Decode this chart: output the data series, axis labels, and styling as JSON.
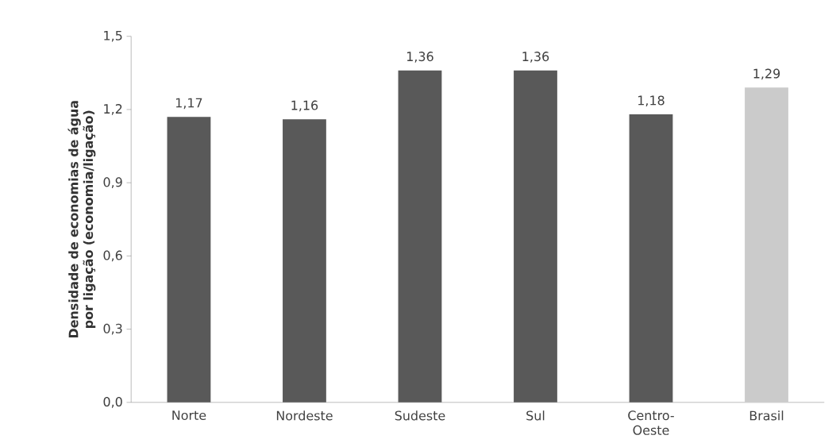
{
  "chart_data": {
    "type": "bar",
    "ylabel": "Densidade de economias de água por ligação (economia/ligação)",
    "categories": [
      "Norte",
      "Nordeste",
      "Sudeste",
      "Sul",
      "Centro-Oeste",
      "Brasil"
    ],
    "values": [
      1.17,
      1.16,
      1.36,
      1.36,
      1.18,
      1.29
    ],
    "value_labels": [
      "1,17",
      "1,16",
      "1,36",
      "1,36",
      "1,18",
      "1,29"
    ],
    "colors": [
      "#595959",
      "#595959",
      "#595959",
      "#595959",
      "#595959",
      "#cbcbcb"
    ],
    "ylim": [
      0,
      1.5
    ],
    "yticks": [
      {
        "value": 0,
        "label": "0,0"
      },
      {
        "value": 0.3,
        "label": "0,3"
      },
      {
        "value": 0.6,
        "label": "0,6"
      },
      {
        "value": 0.9,
        "label": "0,9"
      },
      {
        "value": 1.2,
        "label": "1,2"
      },
      {
        "value": 1.5,
        "label": "1,5"
      }
    ],
    "grid": false
  }
}
